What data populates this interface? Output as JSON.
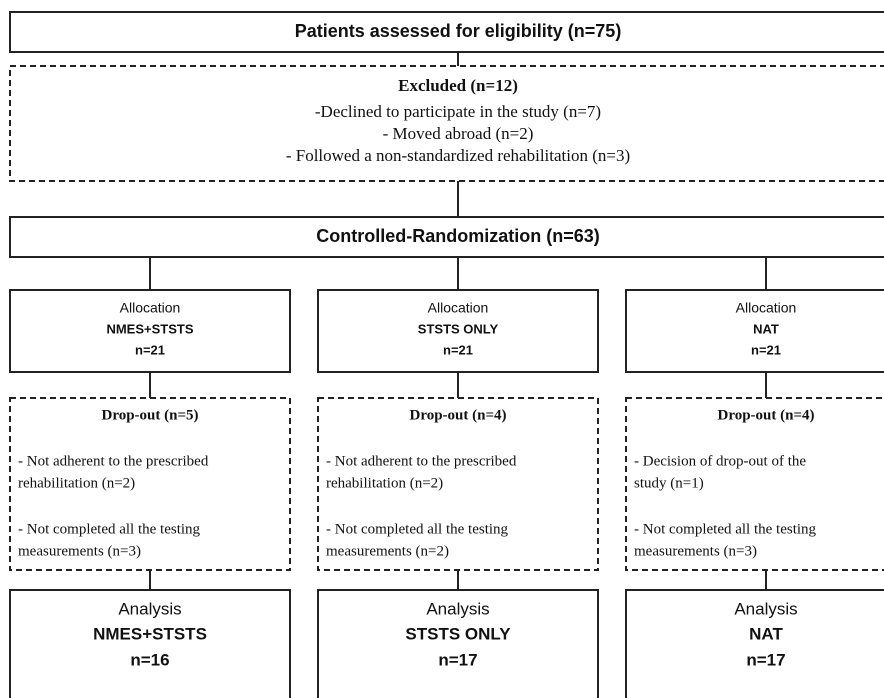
{
  "eligibility": "Patients assessed for eligibility (n=75)",
  "excluded": {
    "title": "Excluded (n=12)",
    "reasons": [
      "-Declined to participate in the study (n=7)",
      "- Moved abroad (n=2)",
      "- Followed a non-standardized rehabilitation (n=3)"
    ]
  },
  "randomization": "Controlled-Randomization (n=63)",
  "arms": [
    {
      "allocation": {
        "label": "Allocation",
        "group": "NMES+STSTS",
        "n": "n=21"
      },
      "dropout": {
        "title": "Drop-out (n=5)",
        "reasons": [
          "- Not adherent to the prescribed",
          "rehabilitation  (n=2)",
          "- Not completed all the testing",
          "measurements  (n=3)"
        ]
      },
      "analysis": {
        "label": "Analysis",
        "group": "NMES+STSTS",
        "n": "n=16"
      }
    },
    {
      "allocation": {
        "label": "Allocation",
        "group": "STSTS ONLY",
        "n": "n=21"
      },
      "dropout": {
        "title": "Drop-out (n=4)",
        "reasons": [
          "- Not adherent to the prescribed",
          "rehabilitation  (n=2)",
          "- Not completed all the testing",
          "measurements  (n=2)"
        ]
      },
      "analysis": {
        "label": "Analysis",
        "group": "STSTS ONLY",
        "n": "n=17"
      }
    },
    {
      "allocation": {
        "label": "Allocation",
        "group": "NAT",
        "n": "n=21"
      },
      "dropout": {
        "title": "Drop-out (n=4)",
        "reasons": [
          "- Decision of drop-out of the",
          "study   (n=1)",
          "- Not completed all the testing",
          "measurements  (n=3)"
        ]
      },
      "analysis": {
        "label": "Analysis",
        "group": "NAT",
        "n": "n=17"
      }
    }
  ]
}
